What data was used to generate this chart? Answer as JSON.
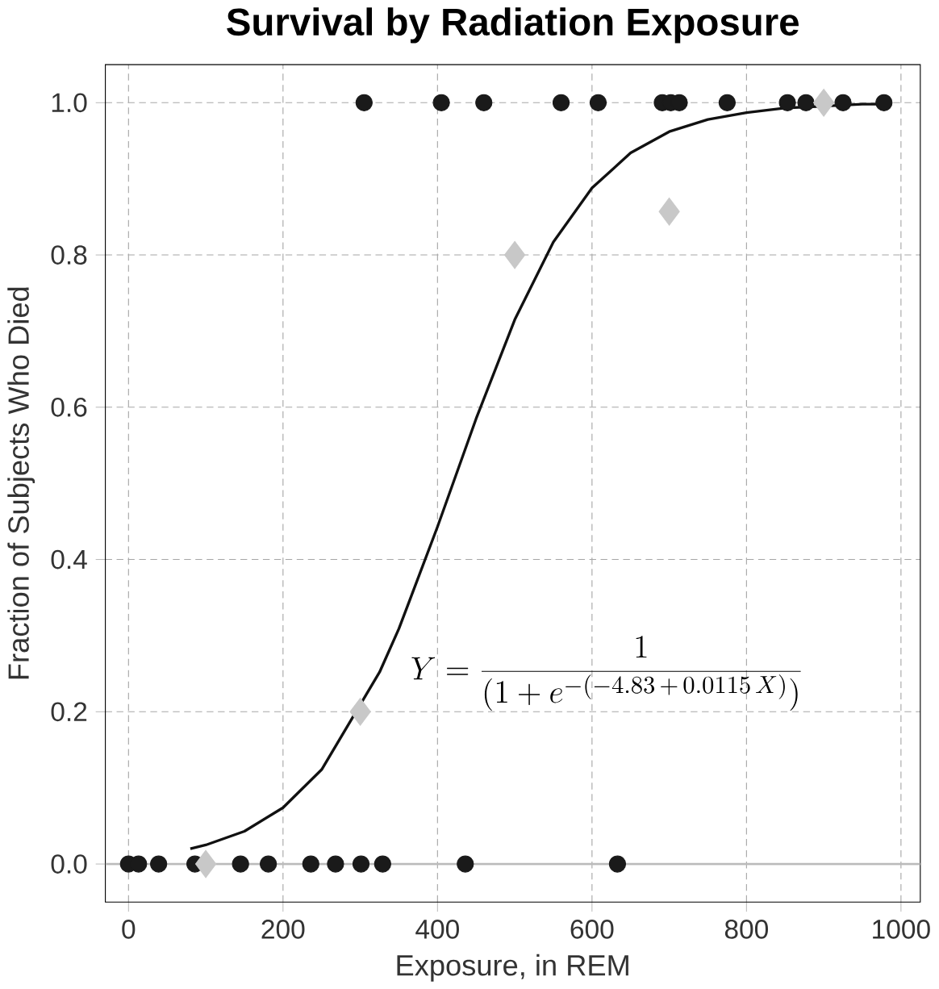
{
  "chart_data": {
    "type": "scatter",
    "title": "Survival by Radiation Exposure",
    "xlabel": "Exposure, in REM",
    "ylabel": "Fraction of Subjects Who Died",
    "xlim": [
      -30,
      1025
    ],
    "ylim": [
      -0.05,
      1.05
    ],
    "xticks": [
      0,
      200,
      400,
      600,
      800,
      1000
    ],
    "yticks": [
      {
        "value": 0,
        "label": "0.0"
      },
      {
        "value": 0.2,
        "label": "0.2"
      },
      {
        "value": 0.4,
        "label": "0.4"
      },
      {
        "value": 0.6,
        "label": "0.6"
      },
      {
        "value": 0.8,
        "label": "0.8"
      },
      {
        "value": 1,
        "label": "1.0"
      }
    ],
    "grid": true,
    "ref_lines": [
      {
        "axis": "y",
        "value": 0,
        "color": "#bbbbbb",
        "line_style": "solid"
      }
    ],
    "annotations": [
      "Y=\\frac{1}{(1+e^{-(-4.83\\,+\\,0.0115\\,X)})}"
    ],
    "series": [
      {
        "marker": "circle",
        "color": "#1a1a1a",
        "x": [
          0,
          13,
          39,
          86,
          145,
          181,
          236,
          268,
          301,
          329,
          436,
          633,
          305,
          405,
          460,
          560,
          608,
          691,
          702,
          713,
          775,
          853,
          877,
          925,
          978
        ],
        "values": [
          0,
          0,
          0,
          0,
          0,
          0,
          0,
          0,
          0,
          0,
          0,
          0,
          1,
          1,
          1,
          1,
          1,
          1,
          1,
          1,
          1,
          1,
          1,
          1,
          1
        ]
      },
      {
        "marker": "diamond",
        "color": "#c8c8c8",
        "x": [
          100,
          300,
          500,
          700,
          900
        ],
        "values": [
          0,
          0.2,
          0.8,
          0.857,
          1.0
        ]
      },
      {
        "type": "line",
        "marker": "none",
        "color": "#111111",
        "line_style": "solid",
        "x": [
          80,
          100,
          150,
          200,
          250,
          325,
          350,
          400,
          450,
          500,
          550,
          600,
          650,
          700,
          750,
          800,
          850,
          950,
          980
        ],
        "values": [
          0.02,
          0.025,
          0.043,
          0.074,
          0.124,
          0.252,
          0.309,
          0.443,
          0.585,
          0.715,
          0.817,
          0.888,
          0.934,
          0.962,
          0.978,
          0.987,
          0.993,
          0.998,
          0.998
        ]
      }
    ]
  }
}
